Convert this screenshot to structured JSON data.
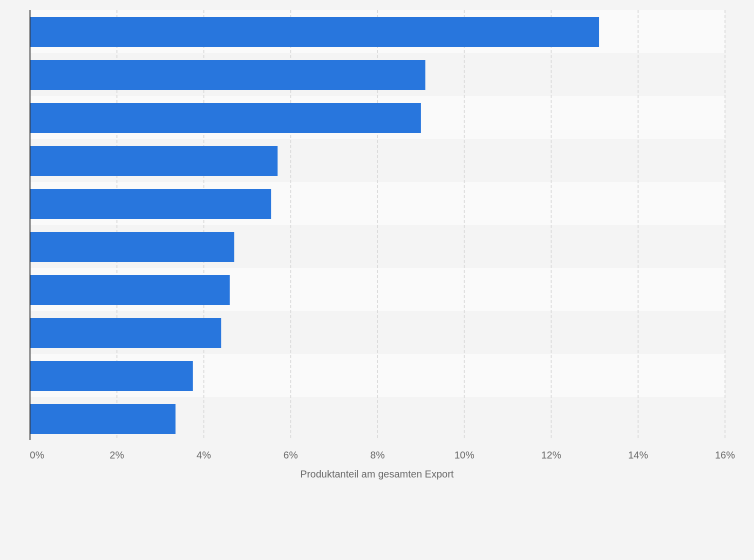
{
  "chart_data": {
    "type": "hbar",
    "xlabel": "Produktanteil am gesamten Export",
    "categories": [
      null,
      null,
      null,
      null,
      null,
      null,
      null,
      null,
      null,
      null
    ],
    "values": [
      13.1,
      9.1,
      9.0,
      5.7,
      5.55,
      4.7,
      4.6,
      4.4,
      3.75,
      3.35
    ],
    "color": "#2876dd",
    "xlim": [
      0,
      16
    ],
    "xticks": [
      {
        "value": 0,
        "label": "0%"
      },
      {
        "value": 2,
        "label": "2%"
      },
      {
        "value": 4,
        "label": "4%"
      },
      {
        "value": 6,
        "label": "6%"
      },
      {
        "value": 8,
        "label": "8%"
      },
      {
        "value": 10,
        "label": "10%"
      },
      {
        "value": 12,
        "label": "12%"
      },
      {
        "value": 14,
        "label": "14%"
      },
      {
        "value": 16,
        "label": "16%"
      }
    ],
    "grid": true
  }
}
